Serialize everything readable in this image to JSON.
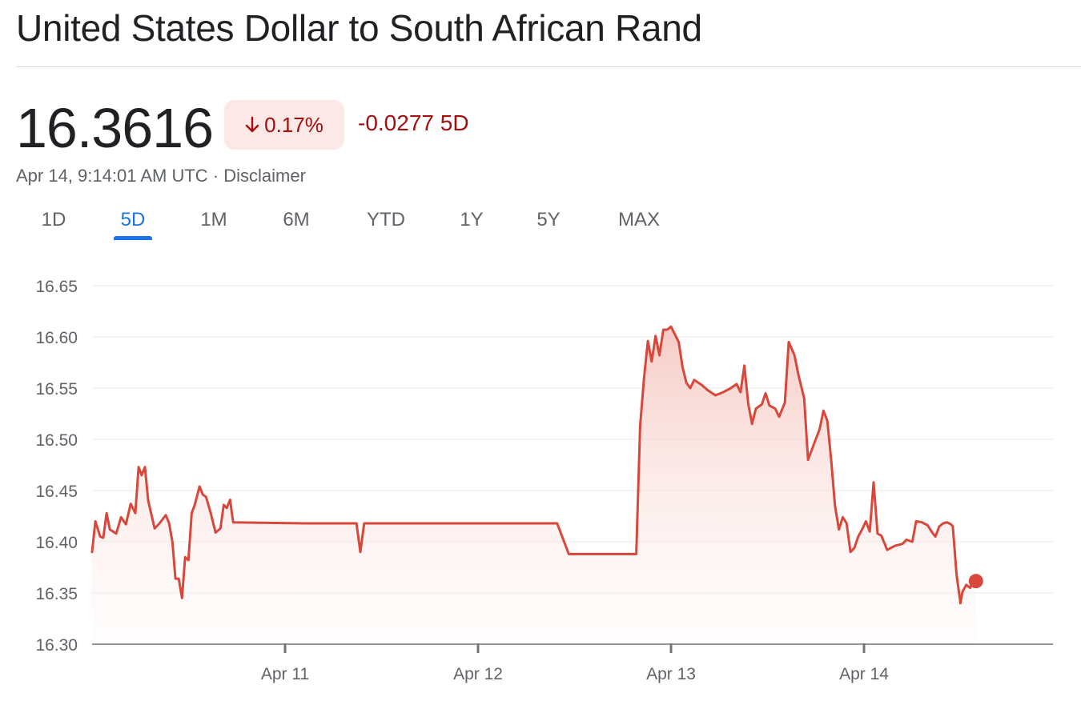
{
  "header": {
    "title": "United States Dollar to South African Rand",
    "price": "16.3616",
    "change_percent": "0.17%",
    "change_value": "-0.0277 5D",
    "timestamp": "Apr 14, 9:14:01 AM UTC · Disclaimer"
  },
  "tabs": [
    {
      "label": "1D",
      "active": false
    },
    {
      "label": "5D",
      "active": true
    },
    {
      "label": "1M",
      "active": false
    },
    {
      "label": "6M",
      "active": false
    },
    {
      "label": "YTD",
      "active": false
    },
    {
      "label": "1Y",
      "active": false
    },
    {
      "label": "5Y",
      "active": false
    },
    {
      "label": "MAX",
      "active": false
    }
  ],
  "colors": {
    "line": "#d9473a",
    "fill": "#f5c6c0",
    "negative": "#a50e0e",
    "badge_bg": "#fce8e6",
    "active_tab": "#1a73e8",
    "grid": "#ebebeb",
    "axis": "#70757a"
  },
  "icons": {
    "change_arrow": "arrow-down-icon"
  },
  "chart_data": {
    "type": "area",
    "title": "",
    "xlabel": "",
    "ylabel": "",
    "ylim": [
      16.3,
      16.65
    ],
    "xlim": [
      0,
      5
    ],
    "yticks": [
      "16.65",
      "16.60",
      "16.55",
      "16.50",
      "16.45",
      "16.40",
      "16.35",
      "16.30"
    ],
    "xticks": [
      {
        "label": "Apr 11",
        "x": 1
      },
      {
        "label": "Apr 12",
        "x": 2
      },
      {
        "label": "Apr 13",
        "x": 3
      },
      {
        "label": "Apr 14",
        "x": 4
      }
    ],
    "grid": true,
    "series": [
      {
        "name": "",
        "points": [
          [
            0.0,
            16.39
          ],
          [
            0.017,
            16.42
          ],
          [
            0.042,
            16.405
          ],
          [
            0.058,
            16.404
          ],
          [
            0.075,
            16.428
          ],
          [
            0.092,
            16.412
          ],
          [
            0.125,
            16.408
          ],
          [
            0.15,
            16.424
          ],
          [
            0.175,
            16.417
          ],
          [
            0.2,
            16.437
          ],
          [
            0.224,
            16.428
          ],
          [
            0.241,
            16.473
          ],
          [
            0.257,
            16.465
          ],
          [
            0.274,
            16.473
          ],
          [
            0.291,
            16.44
          ],
          [
            0.324,
            16.413
          ],
          [
            0.349,
            16.418
          ],
          [
            0.382,
            16.426
          ],
          [
            0.399,
            16.418
          ],
          [
            0.416,
            16.4
          ],
          [
            0.432,
            16.364
          ],
          [
            0.449,
            16.364
          ],
          [
            0.466,
            16.345
          ],
          [
            0.482,
            16.385
          ],
          [
            0.499,
            16.382
          ],
          [
            0.516,
            16.428
          ],
          [
            0.532,
            16.436
          ],
          [
            0.557,
            16.454
          ],
          [
            0.574,
            16.446
          ],
          [
            0.59,
            16.444
          ],
          [
            0.615,
            16.428
          ],
          [
            0.64,
            16.409
          ],
          [
            0.665,
            16.413
          ],
          [
            0.682,
            16.436
          ],
          [
            0.698,
            16.433
          ],
          [
            0.715,
            16.441
          ],
          [
            0.731,
            16.419
          ],
          [
            1.1,
            16.418
          ],
          [
            1.37,
            16.418
          ],
          [
            1.39,
            16.39
          ],
          [
            1.41,
            16.418
          ],
          [
            2.41,
            16.418
          ],
          [
            2.47,
            16.388
          ],
          [
            2.82,
            16.388
          ],
          [
            2.84,
            16.513
          ],
          [
            2.86,
            16.56
          ],
          [
            2.88,
            16.596
          ],
          [
            2.9,
            16.576
          ],
          [
            2.92,
            16.601
          ],
          [
            2.94,
            16.582
          ],
          [
            2.96,
            16.607
          ],
          [
            2.98,
            16.607
          ],
          [
            3.0,
            16.61
          ],
          [
            3.04,
            16.595
          ],
          [
            3.06,
            16.57
          ],
          [
            3.08,
            16.555
          ],
          [
            3.1,
            16.55
          ],
          [
            3.12,
            16.558
          ],
          [
            3.16,
            16.553
          ],
          [
            3.19,
            16.548
          ],
          [
            3.23,
            16.543
          ],
          [
            3.27,
            16.546
          ],
          [
            3.31,
            16.55
          ],
          [
            3.34,
            16.554
          ],
          [
            3.36,
            16.546
          ],
          [
            3.38,
            16.572
          ],
          [
            3.4,
            16.535
          ],
          [
            3.42,
            16.515
          ],
          [
            3.44,
            16.53
          ],
          [
            3.47,
            16.534
          ],
          [
            3.49,
            16.545
          ],
          [
            3.51,
            16.533
          ],
          [
            3.54,
            16.53
          ],
          [
            3.56,
            16.522
          ],
          [
            3.59,
            16.536
          ],
          [
            3.61,
            16.595
          ],
          [
            3.64,
            16.582
          ],
          [
            3.66,
            16.563
          ],
          [
            3.69,
            16.54
          ],
          [
            3.71,
            16.48
          ],
          [
            3.74,
            16.495
          ],
          [
            3.77,
            16.51
          ],
          [
            3.79,
            16.528
          ],
          [
            3.81,
            16.518
          ],
          [
            3.83,
            16.48
          ],
          [
            3.85,
            16.435
          ],
          [
            3.87,
            16.412
          ],
          [
            3.89,
            16.424
          ],
          [
            3.91,
            16.418
          ],
          [
            3.93,
            16.39
          ],
          [
            3.95,
            16.394
          ],
          [
            3.97,
            16.405
          ],
          [
            3.99,
            16.412
          ],
          [
            4.01,
            16.42
          ],
          [
            4.03,
            16.41
          ],
          [
            4.05,
            16.458
          ],
          [
            4.07,
            16.408
          ],
          [
            4.09,
            16.406
          ],
          [
            4.12,
            16.392
          ],
          [
            4.16,
            16.396
          ],
          [
            4.2,
            16.398
          ],
          [
            4.22,
            16.402
          ],
          [
            4.25,
            16.4
          ],
          [
            4.27,
            16.42
          ],
          [
            4.3,
            16.419
          ],
          [
            4.33,
            16.416
          ],
          [
            4.35,
            16.41
          ],
          [
            4.37,
            16.405
          ],
          [
            4.39,
            16.415
          ],
          [
            4.41,
            16.418
          ],
          [
            4.43,
            16.419
          ],
          [
            4.45,
            16.417
          ],
          [
            4.46,
            16.415
          ],
          [
            4.48,
            16.367
          ],
          [
            4.5,
            16.34
          ],
          [
            4.51,
            16.351
          ],
          [
            4.53,
            16.358
          ],
          [
            4.55,
            16.355
          ],
          [
            4.57,
            16.364
          ],
          [
            4.58,
            16.362
          ]
        ]
      }
    ],
    "current_point": [
      4.58,
      16.3616
    ]
  }
}
